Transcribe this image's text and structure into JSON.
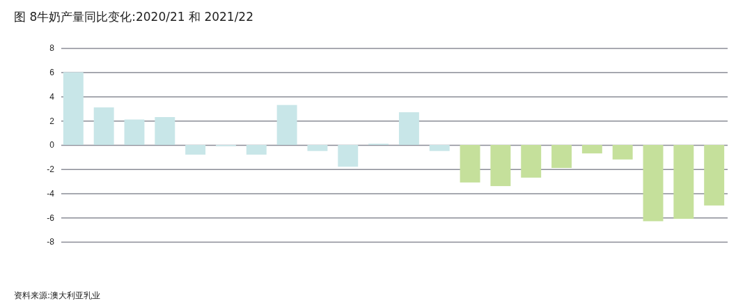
{
  "chart_data": {
    "type": "bar",
    "title": "图 8牛奶产量同比变化:2020/21 和 2021/22",
    "categories": [
      null,
      null,
      null,
      null,
      null,
      null,
      null,
      null,
      null,
      null,
      null,
      null,
      null,
      null,
      null,
      null,
      null,
      null,
      null,
      null,
      null,
      null
    ],
    "values": [
      6.0,
      3.1,
      2.1,
      2.3,
      -0.8,
      -0.1,
      -0.8,
      3.3,
      -0.5,
      -1.8,
      0.1,
      2.7,
      -0.5,
      -3.1,
      -3.4,
      -2.7,
      -1.9,
      -0.7,
      -1.2,
      -6.3,
      -6.1,
      -5.0
    ],
    "colors": [
      "#c8e6e8",
      "#c8e6e8",
      "#c8e6e8",
      "#c8e6e8",
      "#c8e6e8",
      "#c8e6e8",
      "#c8e6e8",
      "#c8e6e8",
      "#c8e6e8",
      "#c8e6e8",
      "#c8e6e8",
      "#c8e6e8",
      "#c8e6e8",
      "#c5e09b",
      "#c5e09b",
      "#c5e09b",
      "#c5e09b",
      "#c5e09b",
      "#c5e09b",
      "#c5e09b",
      "#c5e09b",
      "#c5e09b"
    ],
    "ylim": [
      -8,
      8
    ],
    "yticks": [
      -8,
      -6,
      -4,
      -2,
      0,
      2,
      4,
      6,
      8
    ],
    "grid": "y",
    "annotations": [
      "资料来源:澳大利亚乳业"
    ]
  }
}
